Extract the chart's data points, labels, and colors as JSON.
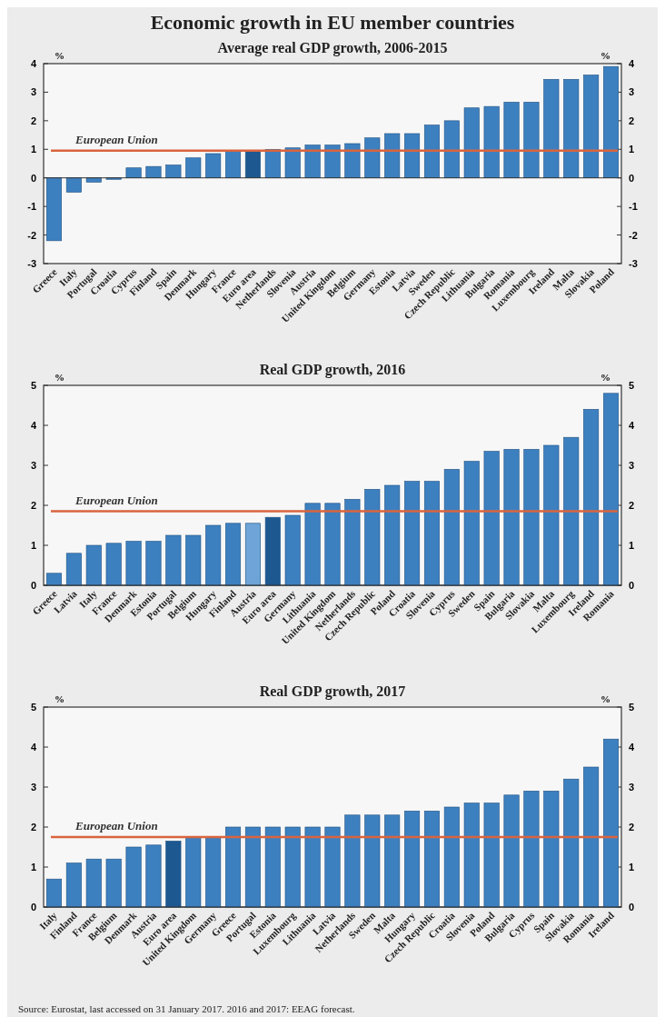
{
  "chart_data": [
    {
      "type": "bar",
      "title": "Economic growth in EU member countries",
      "subtitle": "Average real GDP growth, 2006-2015",
      "ylabel": "%",
      "y2label": "%",
      "categories": [
        "Greece",
        "Italy",
        "Portugal",
        "Croatia",
        "Cyprus",
        "Finland",
        "Spain",
        "Denmark",
        "Hungary",
        "France",
        "Euro area",
        "Netherlands",
        "Slovenia",
        "Austria",
        "United Kingdom",
        "Belgium",
        "Germany",
        "Estonia",
        "Latvia",
        "Sweden",
        "Czech Republic",
        "Lithuania",
        "Bulgaria",
        "Romania",
        "Luxembourg",
        "Ireland",
        "Malta",
        "Slovakia",
        "Poland"
      ],
      "values": [
        -2.2,
        -0.5,
        -0.15,
        -0.05,
        0.35,
        0.4,
        0.45,
        0.7,
        0.85,
        0.95,
        0.95,
        1.0,
        1.05,
        1.15,
        1.15,
        1.2,
        1.4,
        1.55,
        1.55,
        1.85,
        2.0,
        2.45,
        2.5,
        2.65,
        2.65,
        3.45,
        3.45,
        3.6,
        3.9
      ],
      "colors": [
        "#3d80c0",
        "#3d80c0",
        "#3d80c0",
        "#3d80c0",
        "#3d80c0",
        "#3d80c0",
        "#3d80c0",
        "#3d80c0",
        "#3d80c0",
        "#3d80c0",
        "#1d5890",
        "#3d80c0",
        "#3d80c0",
        "#3d80c0",
        "#3d80c0",
        "#3d80c0",
        "#3d80c0",
        "#3d80c0",
        "#3d80c0",
        "#3d80c0",
        "#3d80c0",
        "#3d80c0",
        "#3d80c0",
        "#3d80c0",
        "#3d80c0",
        "#3d80c0",
        "#3d80c0",
        "#3d80c0",
        "#3d80c0"
      ],
      "ylim": [
        -3,
        4
      ],
      "yticks": [
        -3,
        -2,
        -1,
        0,
        1,
        2,
        3,
        4
      ],
      "y2lim": [
        -3,
        4
      ],
      "y2ticks": [
        -3,
        -2,
        -1,
        0,
        1,
        2,
        3,
        4
      ],
      "ref_lines": [
        {
          "axis": "y",
          "value": 0.95,
          "label": "European Union",
          "color": "#d9643e"
        }
      ]
    },
    {
      "type": "bar",
      "title": "Real GDP growth, 2016",
      "ylabel": "%",
      "y2label": "%",
      "categories": [
        "Greece",
        "Latvia",
        "Italy",
        "France",
        "Denmark",
        "Estonia",
        "Portugal",
        "Belgium",
        "Hungary",
        "Finland",
        "Austria",
        "Euro area",
        "Germany",
        "Lithuania",
        "United Kingdom",
        "Netherlands",
        "Czech Republic",
        "Poland",
        "Croatia",
        "Slovenia",
        "Cyprus",
        "Sweden",
        "Spain",
        "Bulgaria",
        "Slovakia",
        "Malta",
        "Luxembourg",
        "Ireland",
        "Romania"
      ],
      "values": [
        0.3,
        0.8,
        1.0,
        1.05,
        1.1,
        1.1,
        1.25,
        1.25,
        1.5,
        1.55,
        1.55,
        1.7,
        1.75,
        2.05,
        2.05,
        2.15,
        2.4,
        2.5,
        2.6,
        2.6,
        2.9,
        3.1,
        3.35,
        3.4,
        3.4,
        3.5,
        3.7,
        4.4,
        4.8
      ],
      "colors": [
        "#3d80c0",
        "#3d80c0",
        "#3d80c0",
        "#3d80c0",
        "#3d80c0",
        "#3d80c0",
        "#3d80c0",
        "#3d80c0",
        "#3d80c0",
        "#3d80c0",
        "#6ea4d8",
        "#1d5890",
        "#3d80c0",
        "#3d80c0",
        "#3d80c0",
        "#3d80c0",
        "#3d80c0",
        "#3d80c0",
        "#3d80c0",
        "#3d80c0",
        "#3d80c0",
        "#3d80c0",
        "#3d80c0",
        "#3d80c0",
        "#3d80c0",
        "#3d80c0",
        "#3d80c0",
        "#3d80c0",
        "#3d80c0"
      ],
      "ylim": [
        0,
        5
      ],
      "yticks": [
        0,
        1,
        2,
        3,
        4,
        5
      ],
      "y2lim": [
        0,
        5
      ],
      "y2ticks": [
        0,
        1,
        2,
        3,
        4,
        5
      ],
      "ref_lines": [
        {
          "axis": "y",
          "value": 1.85,
          "label": "European Union",
          "color": "#d9643e"
        }
      ]
    },
    {
      "type": "bar",
      "title": "Real GDP growth, 2017",
      "ylabel": "%",
      "y2label": "%",
      "categories": [
        "Italy",
        "Finland",
        "France",
        "Belgium",
        "Denmark",
        "Austria",
        "Euro area",
        "United Kingdom",
        "Germany",
        "Greece",
        "Portugal",
        "Estonia",
        "Luxembourg",
        "Lithuania",
        "Latvia",
        "Netherlands",
        "Sweden",
        "Malta",
        "Hungary",
        "Czech Republic",
        "Croatia",
        "Slovenia",
        "Poland",
        "Bulgaria",
        "Cyprus",
        "Spain",
        "Slovakia",
        "Romania",
        "Ireland"
      ],
      "values": [
        0.7,
        1.1,
        1.2,
        1.2,
        1.5,
        1.55,
        1.65,
        1.75,
        1.75,
        2.0,
        2.0,
        2.0,
        2.0,
        2.0,
        2.0,
        2.3,
        2.3,
        2.3,
        2.4,
        2.4,
        2.5,
        2.6,
        2.6,
        2.8,
        2.9,
        2.9,
        3.2,
        3.5,
        4.2
      ],
      "colors": [
        "#3d80c0",
        "#3d80c0",
        "#3d80c0",
        "#3d80c0",
        "#3d80c0",
        "#3d80c0",
        "#1d5890",
        "#3d80c0",
        "#3d80c0",
        "#3d80c0",
        "#3d80c0",
        "#3d80c0",
        "#3d80c0",
        "#3d80c0",
        "#3d80c0",
        "#3d80c0",
        "#3d80c0",
        "#3d80c0",
        "#3d80c0",
        "#3d80c0",
        "#3d80c0",
        "#3d80c0",
        "#3d80c0",
        "#3d80c0",
        "#3d80c0",
        "#3d80c0",
        "#3d80c0",
        "#3d80c0",
        "#3d80c0"
      ],
      "ylim": [
        0,
        5
      ],
      "yticks": [
        0,
        1,
        2,
        3,
        4,
        5
      ],
      "y2lim": [
        0,
        5
      ],
      "y2ticks": [
        0,
        1,
        2,
        3,
        4,
        5
      ],
      "ref_lines": [
        {
          "axis": "y",
          "value": 1.75,
          "label": "European Union",
          "color": "#d9643e"
        }
      ],
      "annotations": [
        "Source: Eurostat, last accessed on 31 January 2017. 2016 and 2017: EEAG forecast."
      ]
    }
  ]
}
